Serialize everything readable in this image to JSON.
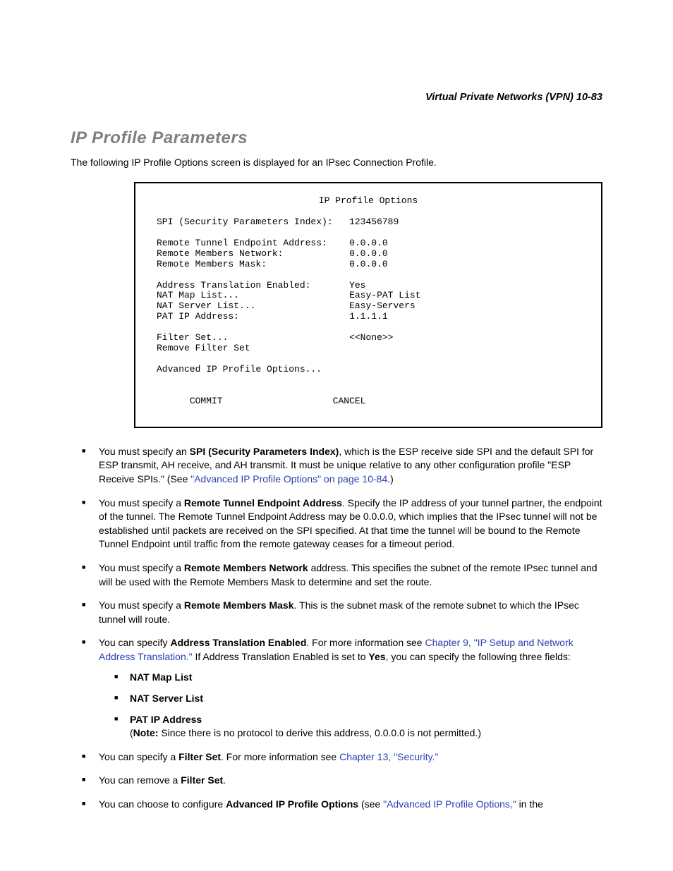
{
  "header": {
    "running": "Virtual Private Networks (VPN)   10-83"
  },
  "section": {
    "title": "IP Profile Parameters",
    "intro": "The following IP Profile Options screen is displayed for an IPsec Connection Profile."
  },
  "terminal": {
    "title": "IP Profile Options",
    "rows": {
      "spi_label": "SPI (Security Parameters Index):",
      "spi_val": "123456789",
      "rte_label": "Remote Tunnel Endpoint Address:",
      "rte_val": "0.0.0.0",
      "rmn_label": "Remote Members Network:",
      "rmn_val": "0.0.0.0",
      "rmm_label": "Remote Members Mask:",
      "rmm_val": "0.0.0.0",
      "ate_label": "Address Translation Enabled:",
      "ate_val": "Yes",
      "nml_label": "NAT Map List...",
      "nml_val": "Easy-PAT List",
      "nsl_label": "NAT Server List...",
      "nsl_val": "Easy-Servers",
      "pat_label": "PAT IP Address:",
      "pat_val": "1.1.1.1",
      "fs_label": "Filter Set...",
      "fs_val": "<<None>>",
      "rfs_label": "Remove Filter Set",
      "adv_label": "Advanced IP Profile Options...",
      "commit": "COMMIT",
      "cancel": "CANCEL"
    }
  },
  "bullets": {
    "b1a": "You must specify an ",
    "b1bold": "SPI (Security Parameters Index)",
    "b1b": ", which is the ESP receive side SPI and the default SPI for ESP transmit, AH receive, and AH transmit. It must be unique relative to any other configuration profile \"ESP Receive SPIs.\" (See ",
    "b1link": "\"Advanced IP Profile Options\" on page 10-84",
    "b1c": ".)",
    "b2a": "You must specify a ",
    "b2bold": "Remote Tunnel Endpoint Address",
    "b2b": ". Specify the IP address of your tunnel partner, the endpoint of the tunnel. The Remote Tunnel Endpoint Address may be 0.0.0.0, which implies that the IPsec tunnel will not be established until packets are received on the SPI specified. At that time the tunnel will be bound to the Remote Tunnel Endpoint until traffic from the remote gateway ceases for a timeout period.",
    "b3a": "You must specify a ",
    "b3bold": "Remote Members Network",
    "b3b": " address. This specifies the subnet of the remote IPsec tunnel and will be used with the Remote Members Mask to determine and set the route.",
    "b4a": "You must specify a ",
    "b4bold": "Remote Members Mask",
    "b4b": ". This is the subnet mask of the remote subnet to which the IPsec tunnel will route.",
    "b5a": "You can specify ",
    "b5bold": "Address Translation Enabled",
    "b5b": ". For more information see ",
    "b5link": "Chapter 9, \"IP Setup and Network Address Translation.\"",
    "b5c": " If Address Translation Enabled is set to ",
    "b5bold2": "Yes",
    "b5d": ", you can specify the following three fields:",
    "sub1": "NAT Map List",
    "sub2": "NAT Server List",
    "sub3bold": "PAT IP Address",
    "sub3a": "(",
    "sub3note": "Note:",
    "sub3b": " Since there is no protocol to derive this address, 0.0.0.0 is not permitted.)",
    "b6a": "You can specify a ",
    "b6bold": "Filter Set",
    "b6b": ". For more information see ",
    "b6link": "Chapter 13, \"Security.\"",
    "b7a": "You can remove a ",
    "b7bold": "Filter Set",
    "b7b": ".",
    "b8a": "You can choose to configure ",
    "b8bold": "Advanced IP Profile Options",
    "b8b": " (see ",
    "b8link": "\"Advanced IP Profile Options,\"",
    "b8c": " in the"
  }
}
